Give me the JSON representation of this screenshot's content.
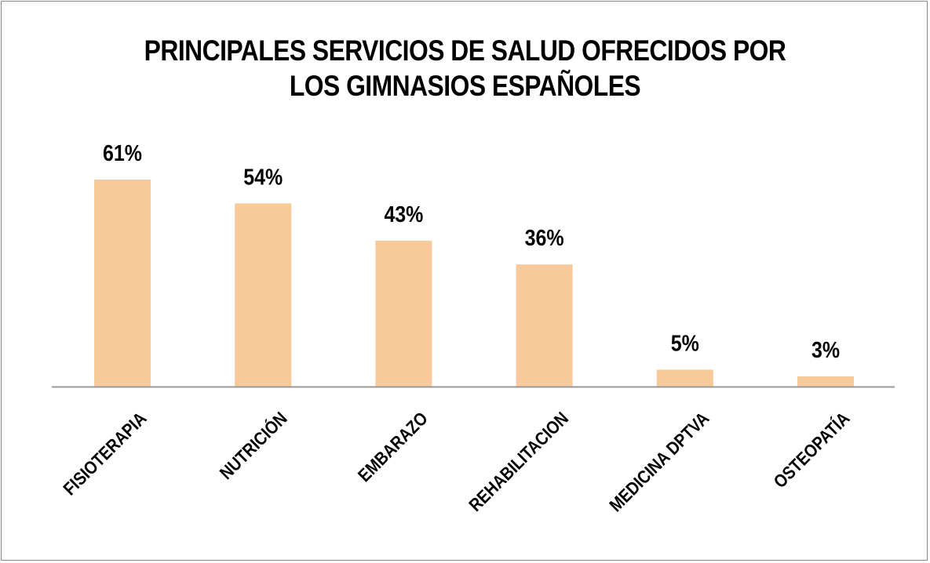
{
  "chart_data": {
    "type": "bar",
    "title_lines": [
      "PRINCIPALES SERVICIOS DE SALUD OFRECIDOS POR",
      "LOS GIMNASIOS ESPAÑOLES"
    ],
    "categories": [
      "FISIOTERAPIA",
      "NUTRICIÓN",
      "EMBARAZO",
      "REHABILITACION",
      "MEDICINA DPTVA",
      "OSTEOPATÍA"
    ],
    "values": [
      61,
      54,
      43,
      36,
      5,
      3
    ],
    "data_labels": [
      "61%",
      "54%",
      "43%",
      "36%",
      "5%",
      "3%"
    ],
    "value_unit": "%",
    "ylim": [
      0,
      61
    ],
    "grid": false,
    "legend": "none",
    "xlabel": "",
    "ylabel": "",
    "colors": {
      "bar": "#f8c99b",
      "axis": "#9a9a9a",
      "text": "#000000"
    }
  }
}
